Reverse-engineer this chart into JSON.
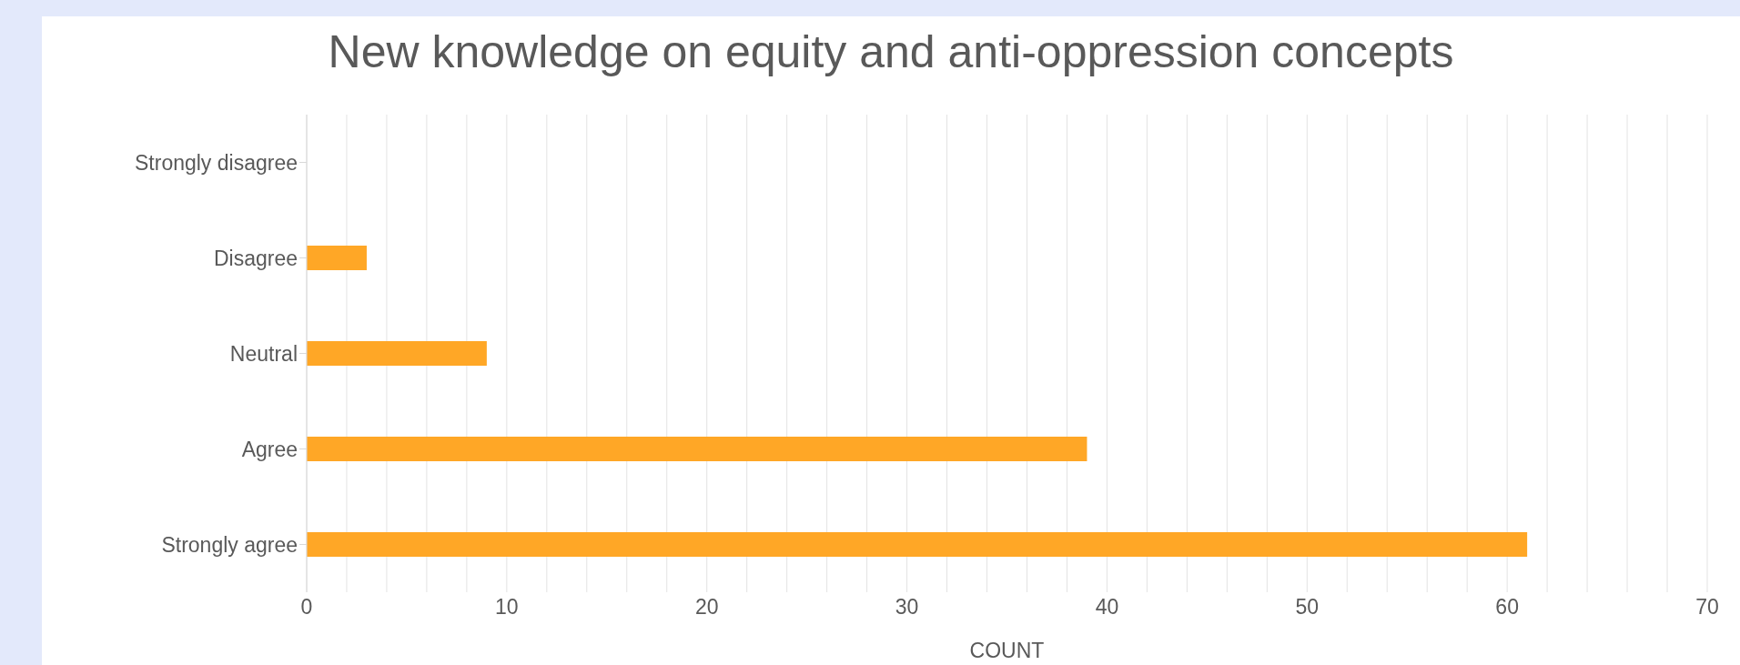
{
  "chart_data": {
    "type": "bar",
    "orientation": "horizontal",
    "title": "New knowledge on equity and anti-oppression concepts",
    "xlabel": "COUNT",
    "categories": [
      "Strongly disagree",
      "Disagree",
      "Neutral",
      "Agree",
      "Strongly agree"
    ],
    "values": [
      0,
      3,
      9,
      39,
      61
    ],
    "color": "#ffa726",
    "xlim": [
      0,
      70
    ],
    "xticks": [
      0,
      {
        "value": 2,
        "label": null
      },
      {
        "value": 4,
        "label": null
      },
      {
        "value": 6,
        "label": null
      },
      {
        "value": 8,
        "label": null
      },
      10,
      {
        "value": 12,
        "label": null
      },
      {
        "value": 14,
        "label": null
      },
      {
        "value": 16,
        "label": null
      },
      {
        "value": 18,
        "label": null
      },
      20,
      {
        "value": 22,
        "label": null
      },
      {
        "value": 24,
        "label": null
      },
      {
        "value": 26,
        "label": null
      },
      {
        "value": 28,
        "label": null
      },
      30,
      {
        "value": 32,
        "label": null
      },
      {
        "value": 34,
        "label": null
      },
      {
        "value": 36,
        "label": null
      },
      {
        "value": 38,
        "label": null
      },
      40,
      {
        "value": 42,
        "label": null
      },
      {
        "value": 44,
        "label": null
      },
      {
        "value": 46,
        "label": null
      },
      {
        "value": 48,
        "label": null
      },
      50,
      {
        "value": 52,
        "label": null
      },
      {
        "value": 54,
        "label": null
      },
      {
        "value": 56,
        "label": null
      },
      {
        "value": 58,
        "label": null
      },
      60,
      {
        "value": 62,
        "label": null
      },
      {
        "value": 64,
        "label": null
      },
      {
        "value": 66,
        "label": null
      },
      {
        "value": 68,
        "label": null
      },
      70
    ],
    "grid": "x",
    "legend": false
  }
}
